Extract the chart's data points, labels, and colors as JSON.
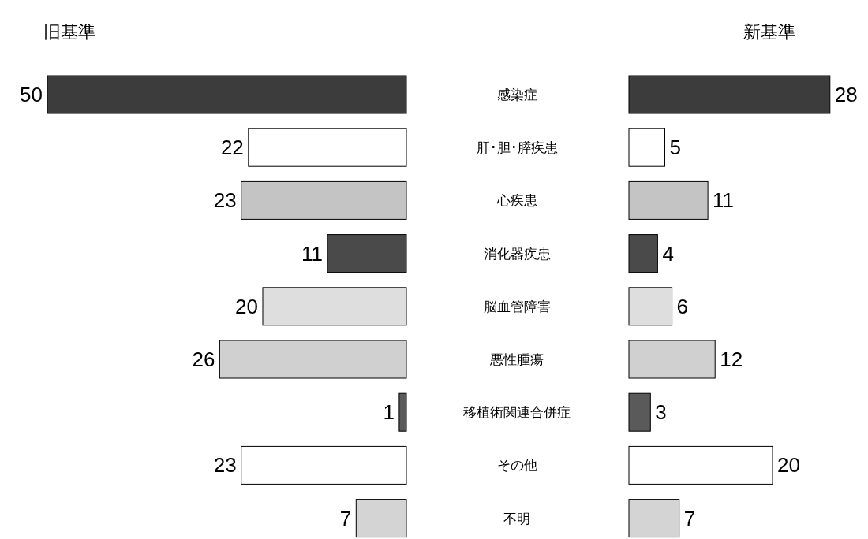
{
  "chart_data": [
    {
      "type": "bar",
      "orientation": "horizontal",
      "title": "旧基準",
      "data_labels": true,
      "categories": [
        "感染症",
        "肝･胆･膵疾患",
        "心疾患",
        "消化器疾患",
        "脳血管障害",
        "悪性腫瘍",
        "移植術関連合併症",
        "その他",
        "不明"
      ],
      "values": [
        50,
        22,
        23,
        11,
        20,
        26,
        1,
        23,
        7
      ],
      "colors": [
        "#3c3c3c",
        "#ffffff",
        "#c4c4c4",
        "#4a4a4a",
        "#dedede",
        "#d0d0d0",
        "#5a5a5a",
        "#ffffff",
        "#d4d4d4"
      ]
    },
    {
      "type": "bar",
      "orientation": "horizontal",
      "title": "新基準",
      "data_labels": true,
      "values": [
        28,
        5,
        11,
        4,
        6,
        12,
        3,
        20,
        7
      ],
      "colors": [
        "#3c3c3c",
        "#ffffff",
        "#c4c4c4",
        "#4a4a4a",
        "#dedede",
        "#d0d0d0",
        "#5a5a5a",
        "#ffffff",
        "#d4d4d4"
      ]
    }
  ]
}
